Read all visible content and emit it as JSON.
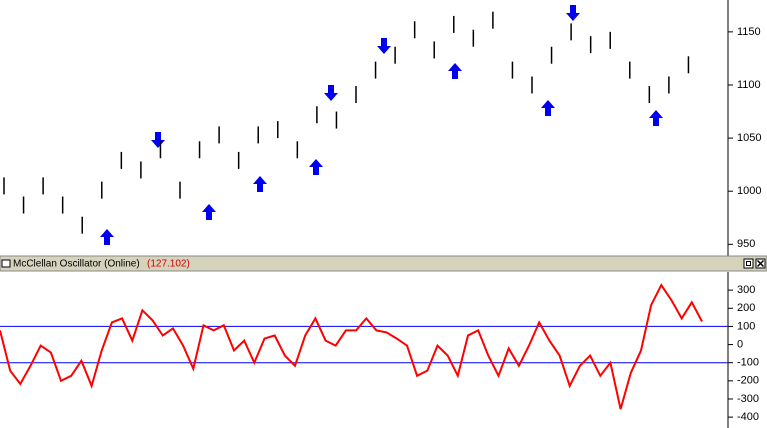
{
  "chart_data": [
    {
      "type": "range",
      "high": [
        1013,
        995,
        1013,
        995,
        976,
        1009,
        1037,
        1028,
        1047,
        1009,
        1047,
        1061,
        1037,
        1061,
        1066,
        1047,
        1080,
        1075,
        1099,
        1122,
        1136,
        1160,
        1141,
        1165,
        1152,
        1169,
        1122,
        1108,
        1136,
        1158,
        1146,
        1150,
        1122,
        1099,
        1108,
        1127
      ],
      "low": [
        997,
        979,
        997,
        979,
        960,
        993,
        1021,
        1012,
        1031,
        993,
        1031,
        1045,
        1021,
        1045,
        1050,
        1031,
        1064,
        1059,
        1083,
        1106,
        1120,
        1144,
        1125,
        1149,
        1136,
        1153,
        1106,
        1092,
        1120,
        1142,
        1130,
        1134,
        1106,
        1083,
        1092,
        1111
      ],
      "color": "#000000",
      "ylim": [
        939,
        1180
      ],
      "yticks": [
        950,
        1000,
        1050,
        1100,
        1150
      ]
    },
    {
      "type": "line",
      "title": "McClellan Oscillator (Online)",
      "last_value": {
        "value": 127.102,
        "label": "(127.102)"
      },
      "values": [
        78,
        -144,
        -217,
        -117,
        -6,
        -44,
        -200,
        -172,
        -89,
        -228,
        -33,
        122,
        144,
        22,
        189,
        133,
        50,
        89,
        -6,
        -133,
        106,
        78,
        106,
        -33,
        22,
        -100,
        33,
        50,
        -61,
        -117,
        50,
        144,
        22,
        -6,
        78,
        78,
        144,
        78,
        67,
        33,
        -6,
        -172,
        -144,
        -6,
        -61,
        -172,
        50,
        78,
        -61,
        -172,
        -22,
        -117,
        -6,
        122,
        22,
        -61,
        -228,
        -117,
        -61,
        -172,
        -100,
        -356,
        -156,
        -33,
        217,
        328,
        244,
        144,
        233,
        127.102
      ],
      "color": "#ff0000",
      "hlines": [
        100,
        -100
      ],
      "hline_color": "#0000ff",
      "ylim": [
        -460,
        400
      ],
      "yticks": [
        300,
        200,
        100,
        0,
        -100,
        -200,
        -300,
        -400
      ]
    }
  ]
}
